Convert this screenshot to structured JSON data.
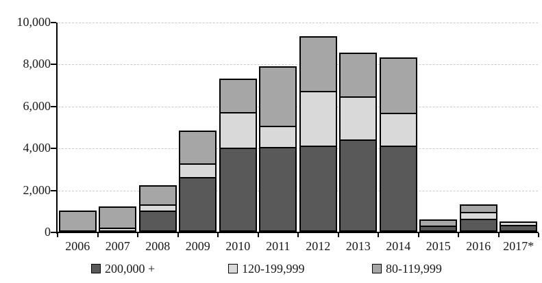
{
  "chart_data": {
    "type": "bar",
    "stacked": true,
    "title": "",
    "xlabel": "",
    "ylabel": "",
    "ylim": [
      0,
      10000
    ],
    "grid": "horizontal-dashed",
    "legend_position": "bottom",
    "y_ticks": [
      {
        "value": 0,
        "label": "0"
      },
      {
        "value": 2000,
        "label": "2,000"
      },
      {
        "value": 4000,
        "label": "4,000"
      },
      {
        "value": 6000,
        "label": "6,000"
      },
      {
        "value": 8000,
        "label": "8,000"
      },
      {
        "value": 10000,
        "label": "10,000"
      }
    ],
    "categories": [
      "2006",
      "2007",
      "2008",
      "2009",
      "2010",
      "2011",
      "2012",
      "2013",
      "2014",
      "2015",
      "2016",
      "2017*"
    ],
    "series": [
      {
        "name": "200,000 +",
        "color": "#595959",
        "values": [
          0,
          0,
          1000,
          2600,
          4000,
          4050,
          4100,
          4400,
          4100,
          300,
          620,
          320
        ]
      },
      {
        "name": "120-199,999",
        "color": "#d9d9d9",
        "values": [
          0,
          200,
          300,
          650,
          1700,
          1000,
          2600,
          2050,
          1550,
          0,
          330,
          160
        ]
      },
      {
        "name": "80-119,999",
        "color": "#a6a6a6",
        "values": [
          1000,
          1000,
          900,
          1550,
          1600,
          2850,
          2600,
          2100,
          2650,
          280,
          350,
          0
        ]
      }
    ],
    "totals": [
      1000,
      1200,
      2200,
      4800,
      7300,
      7900,
      9300,
      8550,
      8300,
      580,
      1300,
      480
    ],
    "colors": {
      "axis": "#000000",
      "gridline": "#c9c9c9",
      "background": "#ffffff"
    }
  }
}
